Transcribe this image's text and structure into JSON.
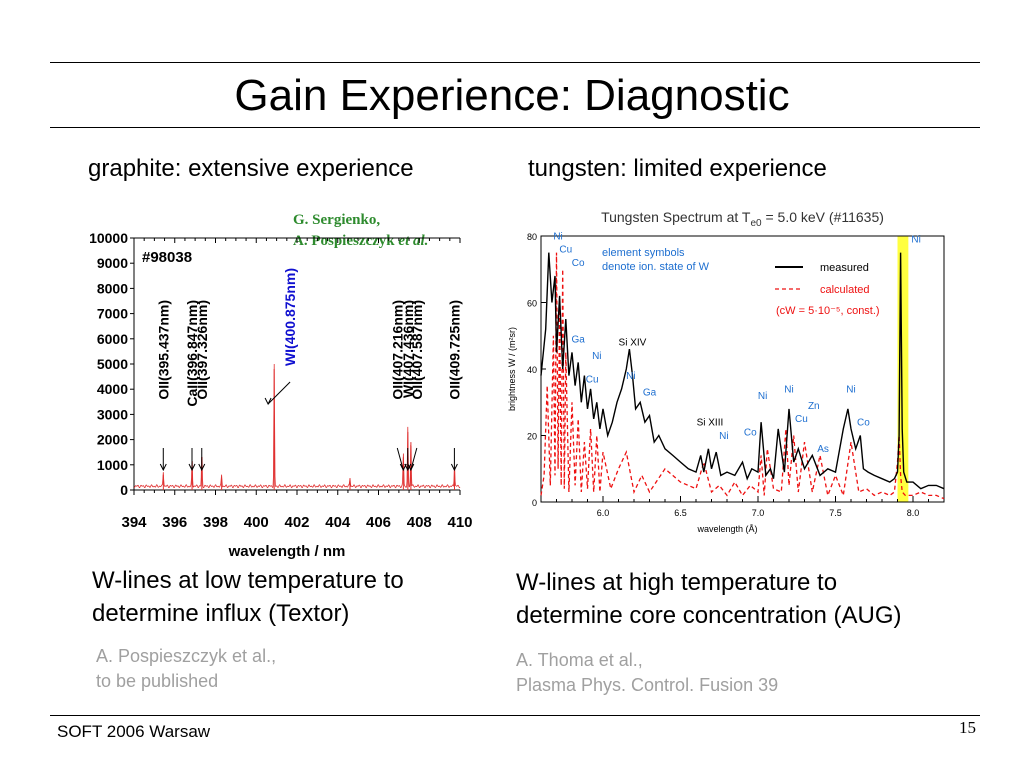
{
  "slide": {
    "title": "Gain Experience: Diagnostic",
    "footer": "SOFT 2006 Warsaw",
    "page_number": "15"
  },
  "left": {
    "subtitle": "graphite: extensive experience",
    "caption_line1": "W-lines at low temperature to",
    "caption_line2": "determine influx (Textor)",
    "ref_line1": "A. Pospieszczyk et al.,",
    "ref_line2": "to be published",
    "credit_line1": "G. Sergienko,",
    "credit_line2_name": "A. Pospieszczyk ",
    "credit_line2_etal": "et al.",
    "credit_color": "#2e8b2e"
  },
  "right": {
    "subtitle": "tungsten: limited experience",
    "caption_line1": "W-lines at high temperature to",
    "caption_line2": "determine core concentration (AUG)",
    "ref_line1": "A. Thoma et al.,",
    "ref_line2": "Plasma Phys. Control. Fusion 39"
  },
  "chart_data": [
    {
      "type": "line",
      "shot_label": "#98038",
      "xlabel": "wavelength / nm",
      "ylabel": "",
      "xlim": [
        394,
        410
      ],
      "ylim": [
        0,
        10000
      ],
      "xticks": [
        394,
        396,
        398,
        400,
        402,
        404,
        406,
        408,
        410
      ],
      "yticks": [
        0,
        1000,
        2000,
        3000,
        4000,
        5000,
        6000,
        7000,
        8000,
        9000,
        10000
      ],
      "line_color": "#e03030",
      "baseline": 150,
      "peaks": [
        {
          "x": 395.44,
          "y": 600
        },
        {
          "x": 396.85,
          "y": 1150
        },
        {
          "x": 397.33,
          "y": 1300
        },
        {
          "x": 398.3,
          "y": 450
        },
        {
          "x": 400.88,
          "y": 4800
        },
        {
          "x": 404.6,
          "y": 350
        },
        {
          "x": 407.22,
          "y": 1300
        },
        {
          "x": 407.44,
          "y": 2300
        },
        {
          "x": 407.59,
          "y": 1900
        },
        {
          "x": 409.73,
          "y": 900
        }
      ],
      "annotations": [
        {
          "text": "OII(395.437nm)",
          "x": 395.437,
          "color": "#000000"
        },
        {
          "text": "CaII(396.847nm)",
          "x": 396.847,
          "color": "#000000"
        },
        {
          "text": "OII(397.326nm)",
          "x": 397.326,
          "color": "#000000"
        },
        {
          "text": "WI(400.875nm)",
          "x": 400.875,
          "color": "#1010d0"
        },
        {
          "text": "OII(407.216nm)",
          "x": 407.216,
          "color": "#000000"
        },
        {
          "text": "WI(407.436nm)",
          "x": 407.436,
          "color": "#000000"
        },
        {
          "text": "OII(407.587nm)",
          "x": 407.587,
          "color": "#000000"
        },
        {
          "text": "OII(409.725nm)",
          "x": 409.725,
          "color": "#000000"
        }
      ]
    },
    {
      "type": "line",
      "title_prefix": "Tungsten Spectrum at T",
      "title_sub": "e0",
      "title_suffix": " = 5.0 keV (#11635)",
      "xlabel": "wavelength (Å)",
      "ylabel": "brightness W / (m²sr)",
      "xlim": [
        5.6,
        8.2
      ],
      "ylim": [
        0,
        80
      ],
      "xticks": [
        6.0,
        6.5,
        7.0,
        7.5,
        8.0
      ],
      "yticks": [
        0,
        20,
        40,
        60,
        80
      ],
      "highlight_band": [
        7.9,
        7.97
      ],
      "highlight_color": "#ffff40",
      "legend": {
        "note_line1": "element symbols",
        "note_line2": "denote ion. state of W",
        "measured": "measured",
        "calculated": "calculated",
        "const_text": "(cW = 5·10⁻⁵, const.)"
      },
      "series": [
        {
          "name": "measured",
          "color": "#000000",
          "dash": "",
          "x": [
            5.6,
            5.63,
            5.65,
            5.67,
            5.69,
            5.7,
            5.72,
            5.74,
            5.76,
            5.78,
            5.8,
            5.82,
            5.84,
            5.86,
            5.88,
            5.9,
            5.92,
            5.94,
            5.96,
            5.98,
            6.0,
            6.03,
            6.06,
            6.09,
            6.12,
            6.15,
            6.17,
            6.19,
            6.21,
            6.24,
            6.27,
            6.3,
            6.33,
            6.36,
            6.4,
            6.45,
            6.5,
            6.55,
            6.6,
            6.63,
            6.65,
            6.68,
            6.7,
            6.73,
            6.76,
            6.8,
            6.85,
            6.9,
            6.93,
            6.96,
            7.0,
            7.02,
            7.05,
            7.08,
            7.1,
            7.13,
            7.17,
            7.2,
            7.23,
            7.26,
            7.3,
            7.35,
            7.4,
            7.45,
            7.5,
            7.55,
            7.58,
            7.6,
            7.63,
            7.66,
            7.68,
            7.71,
            7.75,
            7.8,
            7.85,
            7.88,
            7.9,
            7.91,
            7.92,
            7.93,
            7.94,
            7.96,
            8.0,
            8.05,
            8.1,
            8.15,
            8.2
          ],
          "y": [
            38,
            52,
            75,
            60,
            68,
            45,
            62,
            40,
            55,
            38,
            45,
            35,
            42,
            30,
            38,
            28,
            34,
            25,
            30,
            22,
            28,
            20,
            24,
            30,
            34,
            40,
            46,
            38,
            28,
            30,
            24,
            26,
            18,
            20,
            16,
            14,
            12,
            10,
            9,
            14,
            9,
            16,
            10,
            15,
            8,
            9,
            8,
            12,
            7,
            10,
            9,
            24,
            8,
            10,
            7,
            22,
            9,
            28,
            12,
            16,
            10,
            14,
            8,
            10,
            9,
            22,
            28,
            22,
            16,
            20,
            10,
            9,
            8,
            7,
            6,
            7,
            9,
            20,
            75,
            22,
            9,
            6,
            6,
            4,
            5,
            5,
            4
          ]
        },
        {
          "name": "calculated",
          "color": "#ee1010",
          "dash": "4,3",
          "x": [
            5.6,
            5.62,
            5.64,
            5.66,
            5.68,
            5.69,
            5.7,
            5.71,
            5.72,
            5.73,
            5.74,
            5.75,
            5.76,
            5.78,
            5.8,
            5.82,
            5.84,
            5.86,
            5.88,
            5.9,
            5.92,
            5.94,
            5.96,
            5.98,
            6.0,
            6.05,
            6.1,
            6.15,
            6.2,
            6.25,
            6.3,
            6.4,
            6.5,
            6.6,
            6.65,
            6.7,
            6.75,
            6.8,
            6.85,
            6.9,
            6.95,
            7.0,
            7.02,
            7.04,
            7.06,
            7.1,
            7.15,
            7.18,
            7.2,
            7.23,
            7.26,
            7.3,
            7.35,
            7.4,
            7.45,
            7.5,
            7.55,
            7.6,
            7.65,
            7.7,
            7.75,
            7.8,
            7.85,
            7.88,
            7.9,
            7.91,
            7.92,
            7.93,
            7.95,
            8.0,
            8.05,
            8.1,
            8.15,
            8.2
          ],
          "y": [
            2,
            8,
            35,
            5,
            50,
            8,
            75,
            10,
            60,
            5,
            70,
            4,
            45,
            3,
            30,
            5,
            25,
            3,
            18,
            4,
            22,
            3,
            20,
            3,
            15,
            4,
            10,
            15,
            3,
            8,
            3,
            10,
            6,
            4,
            12,
            3,
            5,
            2,
            6,
            2,
            5,
            3,
            14,
            2,
            16,
            4,
            3,
            22,
            5,
            20,
            3,
            18,
            3,
            14,
            2,
            8,
            2,
            18,
            3,
            4,
            2,
            3,
            2,
            3,
            12,
            20,
            8,
            3,
            2,
            2,
            3,
            2,
            2,
            1
          ]
        }
      ],
      "ion_labels": [
        {
          "text": "Ni",
          "x": 5.71,
          "y": 79,
          "color": "#1e6fd0"
        },
        {
          "text": "Cu",
          "x": 5.76,
          "y": 75,
          "color": "#1e6fd0"
        },
        {
          "text": "Co",
          "x": 5.84,
          "y": 71,
          "color": "#1e6fd0"
        },
        {
          "text": "Ga",
          "x": 5.84,
          "y": 48,
          "color": "#1e6fd0"
        },
        {
          "text": "Ni",
          "x": 5.96,
          "y": 43,
          "color": "#1e6fd0"
        },
        {
          "text": "Cu",
          "x": 5.93,
          "y": 36,
          "color": "#1e6fd0"
        },
        {
          "text": "Si XIV",
          "x": 6.19,
          "y": 47,
          "color": "#000000"
        },
        {
          "text": "Ni",
          "x": 6.18,
          "y": 37,
          "color": "#1e6fd0"
        },
        {
          "text": "Ga",
          "x": 6.3,
          "y": 32,
          "color": "#1e6fd0"
        },
        {
          "text": "Si XIII",
          "x": 6.69,
          "y": 23,
          "color": "#000000"
        },
        {
          "text": "Ni",
          "x": 6.78,
          "y": 19,
          "color": "#1e6fd0"
        },
        {
          "text": "Co",
          "x": 6.95,
          "y": 20,
          "color": "#1e6fd0"
        },
        {
          "text": "Ni",
          "x": 7.03,
          "y": 31,
          "color": "#1e6fd0"
        },
        {
          "text": "Ni",
          "x": 7.2,
          "y": 33,
          "color": "#1e6fd0"
        },
        {
          "text": "Zn",
          "x": 7.36,
          "y": 28,
          "color": "#1e6fd0"
        },
        {
          "text": "Cu",
          "x": 7.28,
          "y": 24,
          "color": "#1e6fd0"
        },
        {
          "text": "As",
          "x": 7.42,
          "y": 15,
          "color": "#1e6fd0"
        },
        {
          "text": "Ni",
          "x": 7.6,
          "y": 33,
          "color": "#1e6fd0"
        },
        {
          "text": "Co",
          "x": 7.68,
          "y": 23,
          "color": "#1e6fd0"
        },
        {
          "text": "Ni",
          "x": 8.02,
          "y": 78,
          "color": "#1e6fd0"
        }
      ]
    }
  ]
}
